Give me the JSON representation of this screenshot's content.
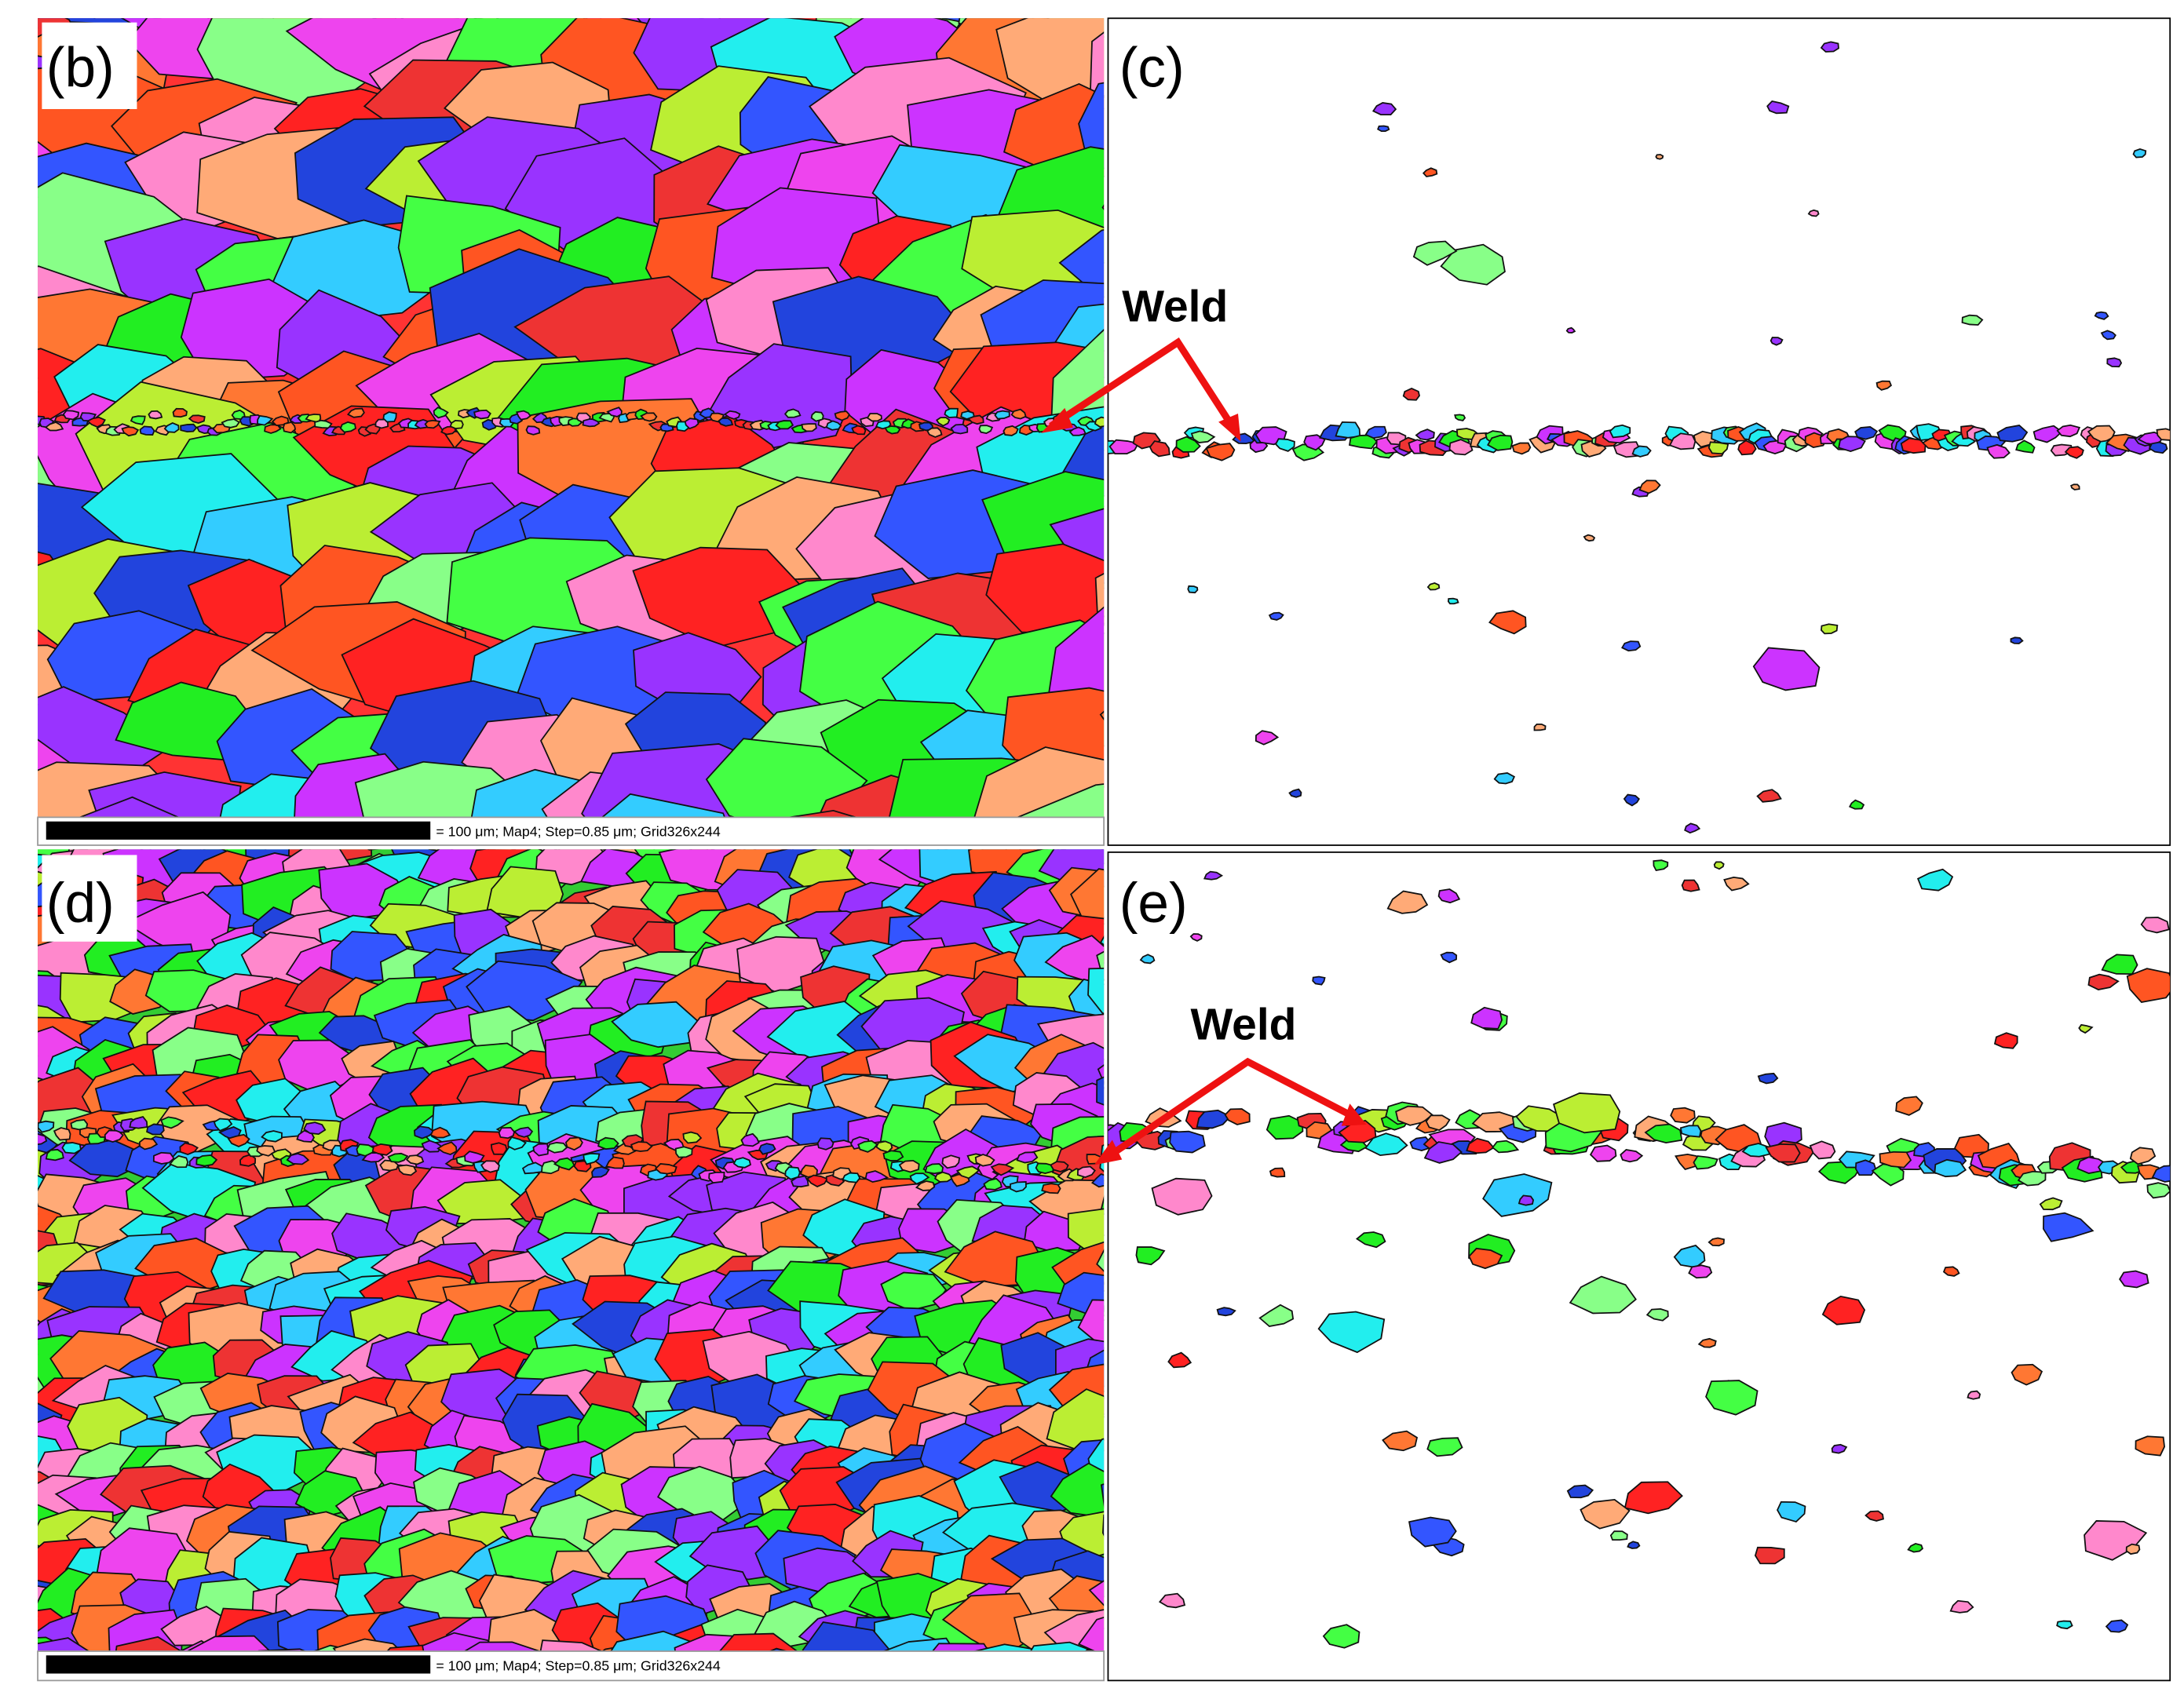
{
  "panels": [
    {
      "label": "(b)",
      "scale_bar": "= 100 μm; Map4; Step=0.85 μm; Grid326x244"
    },
    {
      "label": "(c)",
      "annotation": "Weld"
    },
    {
      "label": "(d)",
      "scale_bar": "= 100 μm; Map4; Step=0.85 μm; Grid326x244"
    },
    {
      "label": "(e)",
      "annotation": "Weld"
    }
  ]
}
